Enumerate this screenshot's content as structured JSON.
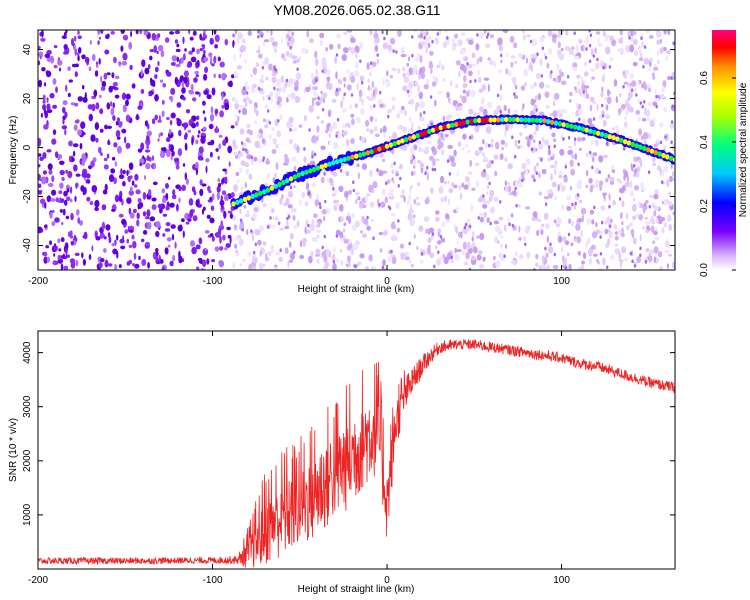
{
  "figure": {
    "title": "YM08.2026.065.02.38.G11"
  },
  "chart_data": [
    {
      "type": "heatmap",
      "title": "",
      "xlabel": "Height of straight line (km)",
      "ylabel": "Frequency (Hz)",
      "xlim": [
        -200,
        165
      ],
      "ylim": [
        -50,
        48
      ],
      "xticks": [
        -200,
        -100,
        0,
        100
      ],
      "yticks": [
        -40,
        -20,
        0,
        20,
        40
      ],
      "colorbar": {
        "label": "Normalized spectral amplitude",
        "range": [
          0.0,
          0.75
        ],
        "ticks": [
          0.0,
          0.2,
          0.4,
          0.6
        ],
        "colormap": [
          "#ffffff",
          "#e6ccff",
          "#7a00ff",
          "#0000ff",
          "#00e5ff",
          "#00ff66",
          "#ffff00",
          "#ff9900",
          "#ff0040",
          "#ff0080"
        ]
      },
      "ridge": {
        "description_points_x": [
          -88,
          -70,
          -50,
          -30,
          -10,
          10,
          30,
          50,
          70,
          90,
          110,
          130,
          150,
          165
        ],
        "description_points_y": [
          -23,
          -18,
          -11,
          -6,
          -2,
          3,
          8,
          11,
          11.5,
          11,
          8,
          4,
          -1,
          -5
        ],
        "amplitude_range": [
          0.3,
          0.75
        ]
      },
      "noise_onset_x": -88
    },
    {
      "type": "line",
      "title": "",
      "xlabel": "Height of straight line (km)",
      "ylabel": "SNR (10 * v/v)",
      "xlim": [
        -200,
        165
      ],
      "ylim": [
        0,
        4400
      ],
      "xticks": [
        -200,
        -100,
        0,
        100
      ],
      "yticks": [
        1000,
        2000,
        3000,
        4000
      ],
      "series": [
        {
          "name": "SNR",
          "color": "#ee2222",
          "x": [
            -200,
            -150,
            -100,
            -85,
            -80,
            -75,
            -70,
            -65,
            -60,
            -55,
            -50,
            -45,
            -40,
            -35,
            -30,
            -25,
            -20,
            -15,
            -10,
            -5,
            0,
            5,
            10,
            15,
            20,
            25,
            30,
            40,
            50,
            60,
            70,
            80,
            90,
            100,
            110,
            120,
            130,
            140,
            150,
            165
          ],
          "values": [
            150,
            150,
            160,
            170,
            300,
            500,
            750,
            900,
            1000,
            1100,
            1200,
            1300,
            1450,
            1600,
            1800,
            1900,
            2100,
            2300,
            2500,
            2600,
            1200,
            2700,
            3200,
            3500,
            3750,
            3950,
            4100,
            4150,
            4150,
            4100,
            4050,
            4000,
            3950,
            3900,
            3800,
            3750,
            3650,
            3550,
            3450,
            3350
          ],
          "noise_amplitude": [
            60,
            60,
            60,
            80,
            300,
            500,
            700,
            750,
            800,
            800,
            800,
            850,
            900,
            900,
            900,
            900,
            950,
            900,
            900,
            850,
            700,
            500,
            350,
            250,
            200,
            150,
            120,
            100,
            100,
            100,
            100,
            100,
            100,
            100,
            100,
            100,
            100,
            100,
            100,
            100
          ]
        }
      ]
    }
  ]
}
